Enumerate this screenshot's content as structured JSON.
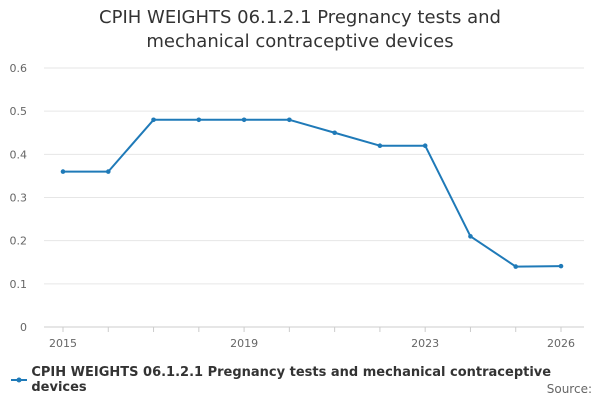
{
  "chart_data": {
    "type": "line",
    "title": "CPIH WEIGHTS 06.1.2.1 Pregnancy tests and mechanical contraceptive devices",
    "x": [
      2015,
      2016,
      2017,
      2018,
      2019,
      2020,
      2021,
      2022,
      2023,
      2024,
      2025,
      2026
    ],
    "series": [
      {
        "name": "CPIH WEIGHTS 06.1.2.1 Pregnancy tests and mechanical contraceptive devices",
        "values": [
          0.36,
          0.36,
          0.48,
          0.48,
          0.48,
          0.48,
          0.45,
          0.42,
          0.42,
          0.21,
          0.14,
          0.141
        ],
        "color": "#1f7ab8"
      }
    ],
    "xticks": [
      "2015",
      "2019",
      "2023",
      "2026"
    ],
    "yticks": [
      "0",
      "0.1",
      "0.2",
      "0.3",
      "0.4",
      "0.5",
      "0.6"
    ],
    "xlim": [
      2015,
      2026
    ],
    "ylim": [
      0,
      0.6
    ],
    "xlabel": "",
    "ylabel": "",
    "grid": true,
    "legend": "bottom"
  },
  "source_label": "Source:"
}
